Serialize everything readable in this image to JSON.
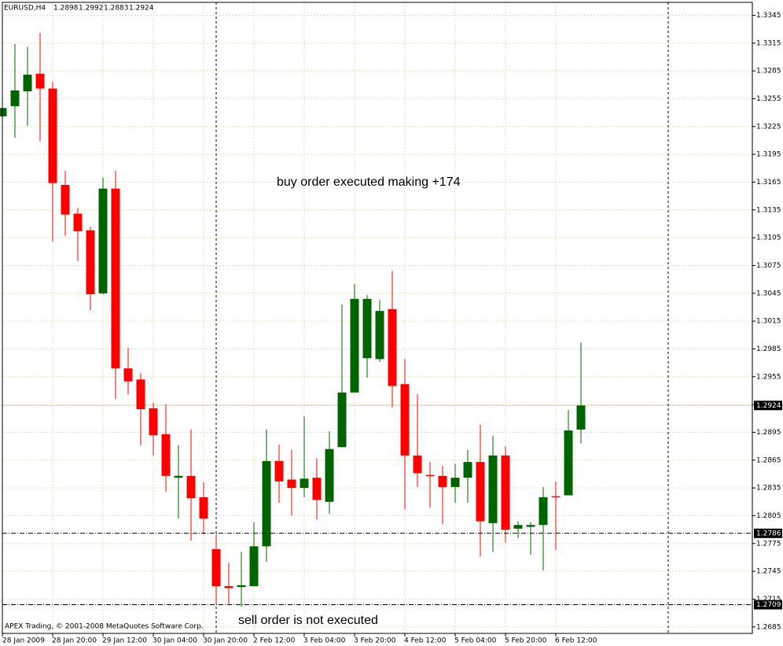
{
  "chart_data": {
    "type": "candlestick",
    "symbol": "EURUSD,H4",
    "copyright": "APEX Trading, © 2001-2008 MetaQuotes Software Corp.",
    "annotations": [
      "buy order executed making +174",
      "sell order is not executed"
    ],
    "up_color": "#006400",
    "down_color": "#ff0000",
    "grid": true,
    "grid_color": "#e6e2b4",
    "categories": [
      "28 Jan 2009",
      null,
      null,
      null,
      "28 Jan 20:00",
      null,
      null,
      null,
      "29 Jan 12:00",
      null,
      null,
      null,
      "30 Jan 04:00",
      null,
      null,
      null,
      "30 Jan 20:00",
      null,
      null,
      null,
      "2 Feb 12:00",
      null,
      null,
      null,
      "3 Feb 04:00",
      null,
      null,
      null,
      "3 Feb 20:00",
      null,
      null,
      null,
      "4 Feb 12:00",
      null,
      null,
      null,
      "5 Feb 04:00",
      null,
      null,
      null,
      "5 Feb 20:00",
      null,
      null,
      null,
      "6 Feb 12:00",
      null,
      null
    ],
    "open": [
      1.3236,
      1.3247,
      1.3263,
      1.3282,
      1.3266,
      1.3162,
      1.3131,
      1.3113,
      1.3045,
      1.3158,
      1.2964,
      1.2952,
      1.2921,
      1.2893,
      1.2846,
      1.2848,
      1.2825,
      1.2769,
      1.2729,
      1.2728,
      1.2729,
      1.2772,
      1.2864,
      1.2844,
      1.2835,
      1.2846,
      1.282,
      1.2879,
      1.2938,
      1.2975,
      1.2974,
      1.3028,
      1.2947,
      1.287,
      1.2849,
      1.2848,
      1.2836,
      1.2846,
      1.2863,
      1.2797,
      1.287,
      1.2791,
      1.2793,
      1.2795,
      1.2826,
      1.2827,
      1.2898
    ],
    "high": [
      1.3264,
      1.3314,
      1.3311,
      1.3326,
      1.3273,
      1.3177,
      1.3137,
      1.3117,
      1.317,
      1.3177,
      1.2986,
      1.2959,
      1.2927,
      1.2925,
      1.2881,
      1.2898,
      1.2841,
      1.2785,
      1.2754,
      1.2766,
      1.2798,
      1.2898,
      1.2882,
      1.2876,
      1.2912,
      1.2867,
      1.2896,
      1.3033,
      1.3055,
      1.3043,
      1.3038,
      1.3069,
      1.2974,
      1.2936,
      1.2863,
      1.2859,
      1.2861,
      1.2876,
      1.2903,
      1.2891,
      1.288,
      1.2799,
      1.2798,
      1.2836,
      1.2842,
      1.2919,
      1.2992
    ],
    "low": [
      1.3216,
      1.3213,
      1.3226,
      1.3209,
      1.3101,
      1.3107,
      1.308,
      1.3027,
      1.3044,
      1.2931,
      1.2936,
      1.2881,
      1.287,
      1.2831,
      1.2802,
      1.2778,
      1.2785,
      1.271,
      1.271,
      1.2707,
      1.2729,
      1.2755,
      1.2819,
      1.2805,
      1.2825,
      1.2801,
      1.2807,
      1.2879,
      1.2938,
      1.2954,
      1.2971,
      1.2922,
      1.2812,
      1.2836,
      1.2814,
      1.2796,
      1.2819,
      1.2819,
      1.2761,
      1.2766,
      1.2776,
      1.2781,
      1.2763,
      1.2746,
      1.2768,
      1.2827,
      1.2883
    ],
    "close": [
      1.3245,
      1.3264,
      1.3281,
      1.3266,
      1.3164,
      1.313,
      1.3112,
      1.3044,
      1.3158,
      1.2964,
      1.295,
      1.292,
      1.2892,
      1.2848,
      1.2848,
      1.2824,
      1.2802,
      1.2729,
      1.2727,
      1.273,
      1.2772,
      1.2864,
      1.2842,
      1.2835,
      1.2845,
      1.2822,
      1.2877,
      1.2938,
      1.3039,
      1.3039,
      1.3026,
      1.2945,
      1.287,
      1.2851,
      1.2848,
      1.2836,
      1.2846,
      1.2863,
      1.2799,
      1.287,
      1.279,
      1.2795,
      1.2795,
      1.2825,
      1.2825,
      1.2897,
      1.2924
    ],
    "levels": [
      1.2786,
      1.2709
    ],
    "ylim": [
      1.2678,
      1.3359
    ],
    "yticks": [
      1.2685,
      1.2715,
      1.2745,
      1.2775,
      1.2805,
      1.2835,
      1.2865,
      1.2895,
      1.2925,
      1.2955,
      1.2985,
      1.3015,
      1.3045,
      1.3075,
      1.3105,
      1.3135,
      1.3165,
      1.3195,
      1.3225,
      1.3255,
      1.3285,
      1.3315,
      1.3345
    ]
  }
}
